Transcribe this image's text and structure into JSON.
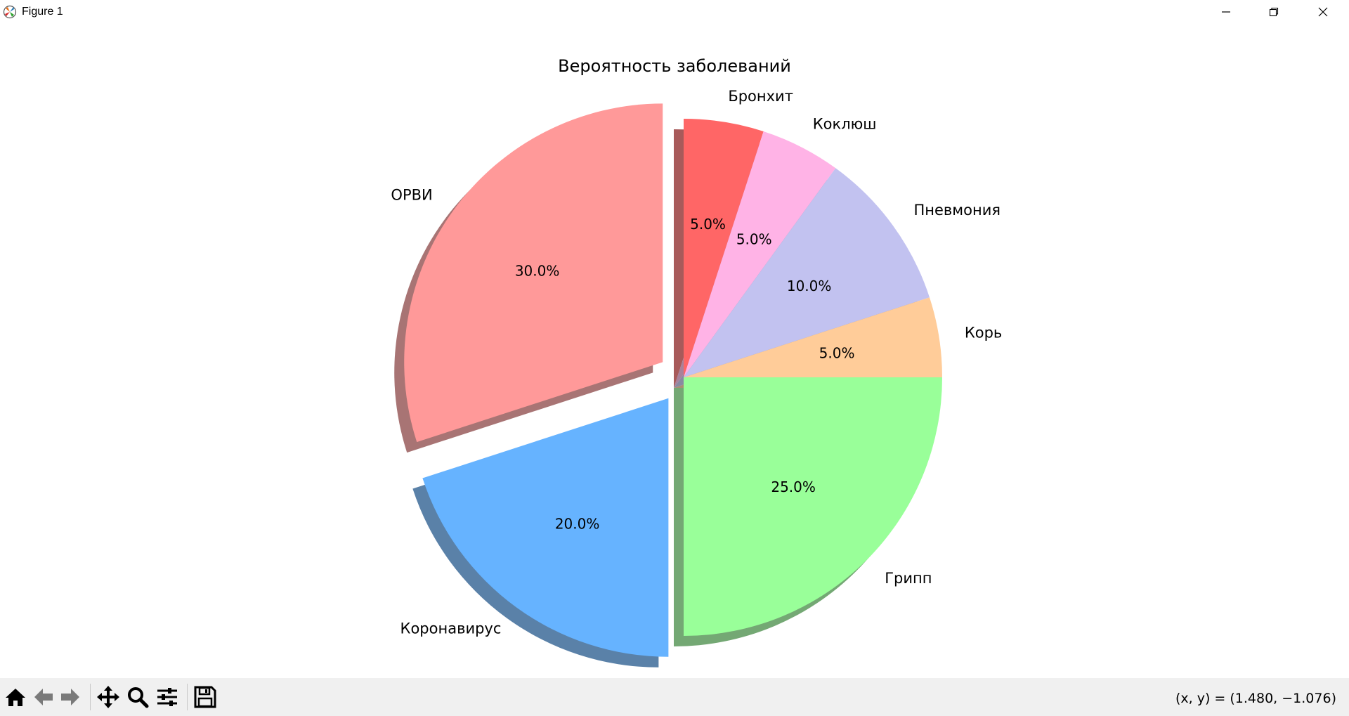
{
  "window": {
    "title": "Figure 1",
    "icons": [
      "matplotlib-icon",
      "minimize-icon",
      "restore-icon",
      "close-icon"
    ]
  },
  "chart_data": {
    "type": "pie",
    "title": "Вероятность заболеваний",
    "labels": [
      "Бронхит",
      "Коклюш",
      "Пневмония",
      "Корь",
      "Грипп",
      "Коронавирус",
      "ОРВИ"
    ],
    "values": [
      5,
      5,
      10,
      5,
      25,
      20,
      30
    ],
    "pct_labels": [
      "5.0%",
      "5.0%",
      "10.0%",
      "5.0%",
      "25.0%",
      "20.0%",
      "30.0%"
    ],
    "colors": [
      "#ff6666",
      "#ffb3e6",
      "#c2c2f0",
      "#ffcc99",
      "#99ff99",
      "#66b3ff",
      "#ff9999"
    ],
    "explode": [
      0,
      0,
      0,
      0,
      0,
      0.1,
      0.1
    ],
    "shadow": true,
    "start_angle": 90,
    "direction": "clockwise",
    "legend": "none"
  },
  "toolbar": {
    "icons": [
      "home-icon",
      "back-icon",
      "forward-icon",
      "pan-icon",
      "zoom-icon",
      "configure-icon",
      "save-icon"
    ],
    "coords": "(x, y) = (1.480, −1.076)"
  }
}
